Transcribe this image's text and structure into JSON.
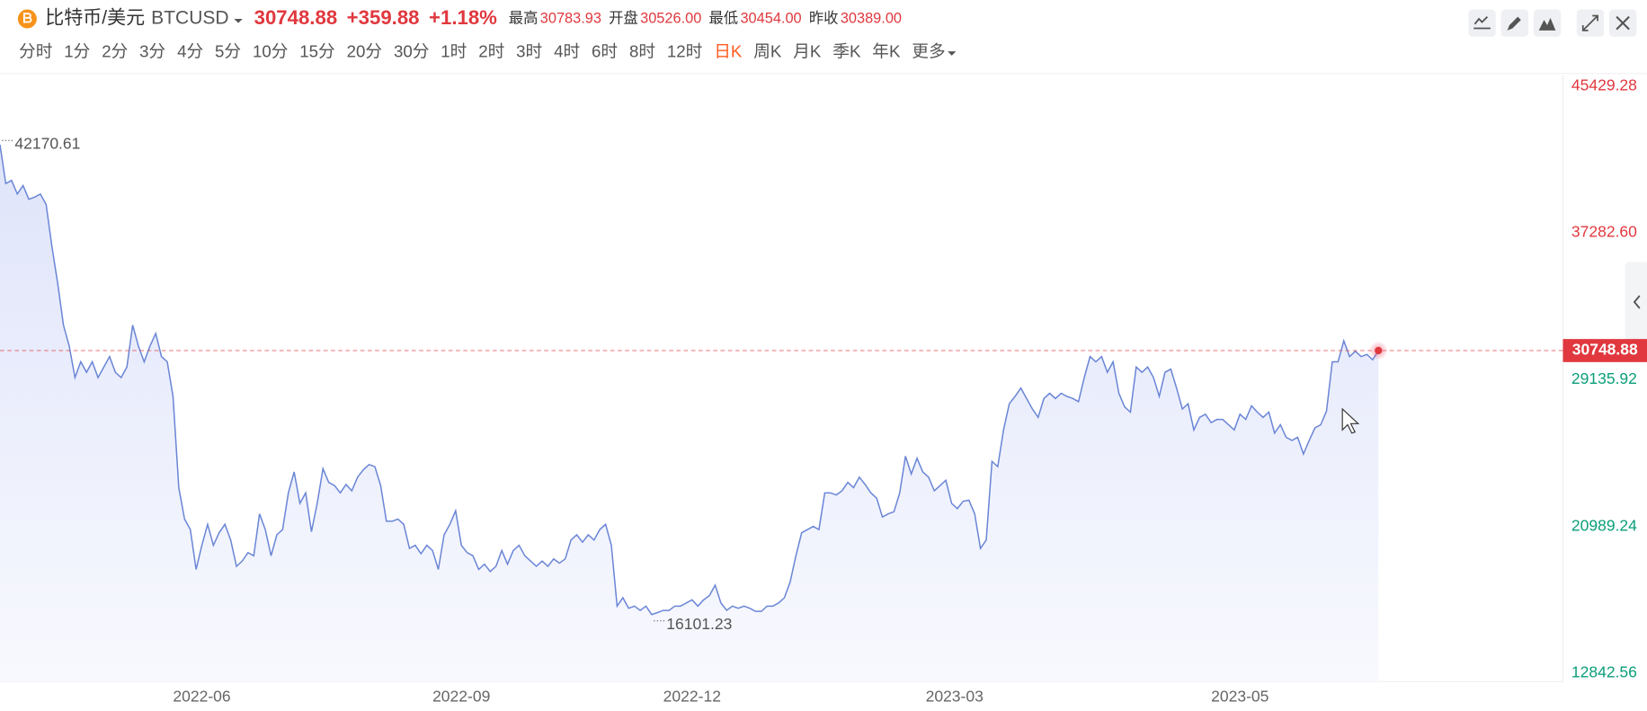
{
  "header": {
    "name": "比特币/美元",
    "symbol": "BTCUSD",
    "last": "30748.88",
    "change": "+359.88",
    "change_pct": "+1.18%",
    "stats": [
      {
        "label": "最高",
        "value": "30783.93"
      },
      {
        "label": "开盘",
        "value": "30526.00"
      },
      {
        "label": "最低",
        "value": "30454.00"
      },
      {
        "label": "昨收",
        "value": "30389.00"
      }
    ]
  },
  "toolbar": {
    "intervals": [
      "分时",
      "1分",
      "2分",
      "3分",
      "4分",
      "5分",
      "10分",
      "15分",
      "20分",
      "30分",
      "1时",
      "2时",
      "3时",
      "4时",
      "6时",
      "8时",
      "12时",
      "日K",
      "周K",
      "月K",
      "季K",
      "年K",
      "更多"
    ],
    "active": "日K"
  },
  "chart_data": {
    "type": "area",
    "color": "#6b86d6",
    "values": [
      42170.61,
      40017,
      40192,
      39435,
      39901,
      39144,
      39261,
      39435,
      38854,
      36526,
      34489,
      32162,
      30998,
      29252,
      30125,
      29543,
      30125,
      29252,
      29834,
      30416,
      29543,
      29252,
      29834,
      32162,
      30998,
      30125,
      30998,
      31696,
      30416,
      30125,
      28205,
      23142,
      21397,
      20815,
      18603,
      19942,
      21106,
      19942,
      20640,
      21106,
      20233,
      18778,
      19069,
      19534,
      19360,
      21687,
      20815,
      19360,
      20524,
      20815,
      22851,
      24015,
      22269,
      22851,
      20698,
      22269,
      24190,
      23433,
      23259,
      22851,
      23317,
      22968,
      23724,
      24131,
      24422,
      24306,
      23259,
      21280,
      21280,
      21397,
      21106,
      19767,
      19942,
      19476,
      19942,
      19651,
      18603,
      20524,
      21106,
      21862,
      19942,
      19534,
      19360,
      18603,
      18894,
      18487,
      18778,
      19651,
      18894,
      19651,
      19942,
      19360,
      19069,
      18778,
      19069,
      18778,
      19185,
      18953,
      19185,
      20233,
      20524,
      20116,
      20524,
      20233,
      20815,
      21106,
      19942,
      16567,
      17032,
      16450,
      16567,
      16330,
      16567,
      16101.23,
      16210,
      16330,
      16330,
      16567,
      16567,
      16741,
      16916,
      16567,
      16916,
      17149,
      17731,
      16741,
      16334,
      16567,
      16450,
      16567,
      16450,
      16276,
      16276,
      16567,
      16567,
      16741,
      17032,
      17905,
      19360,
      20640,
      20815,
      20989,
      20815,
      22851,
      22851,
      22735,
      22968,
      23433,
      23142,
      23724,
      23317,
      22851,
      22560,
      21513,
      21687,
      21804,
      22851,
      24888,
      23899,
      24772,
      24015,
      23724,
      22968,
      23259,
      23550,
      22269,
      21978,
      22386,
      22444,
      21687,
      19767,
      20233,
      24597,
      24306,
      26343,
      27797,
      28205,
      28670,
      28088,
      27506,
      27041,
      28088,
      28379,
      28088,
      28379,
      28205,
      28088,
      27914,
      29252,
      30416,
      30125,
      30416,
      29543,
      30125,
      28379,
      27623,
      27332,
      29834,
      29543,
      29834,
      29252,
      28205,
      29543,
      29718,
      28670,
      27506,
      27797,
      26343,
      27041,
      27216,
      26750,
      26925,
      26925,
      26634,
      26343,
      27216,
      26925,
      27681,
      27332,
      27041,
      27332,
      26168,
      26634,
      25935,
      25761,
      25935,
      25004,
      25761,
      26459,
      26634,
      27390,
      30125,
      30125,
      31289,
      30416,
      30707,
      30416,
      30532,
      30241,
      30748.88
    ],
    "xlim": [
      0,
      271
    ],
    "xticks": [
      {
        "value": 35,
        "label": "2022-06"
      },
      {
        "value": 80,
        "label": "2022-09"
      },
      {
        "value": 120,
        "label": "2022-12"
      },
      {
        "value": 165.5,
        "label": "2023-03"
      },
      {
        "value": 215,
        "label": "2023-05"
      }
    ],
    "ylim": [
      12377,
      46011
    ],
    "yticks": [
      12842.56,
      20989.24,
      29135.92,
      {
        "value": 37282.6,
        "label": "37282.60"
      },
      45429.28
    ],
    "grid": false
  }
}
